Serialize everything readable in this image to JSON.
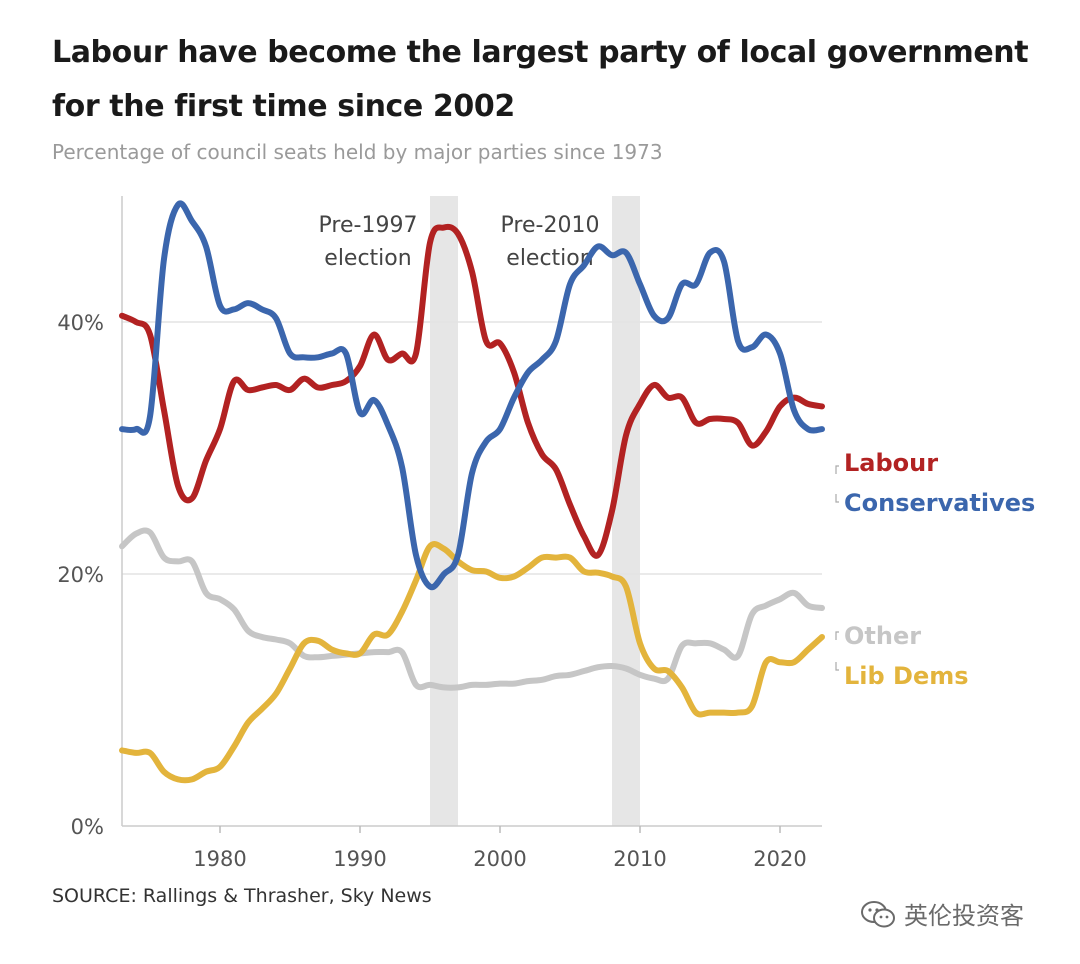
{
  "title": "Labour have become the largest party of local government for the first time since 2002",
  "subtitle": "Percentage of council seats held by major parties since 1973",
  "source": "SOURCE: Rallings & Thrasher, Sky News",
  "watermark": "英伦投资客",
  "chart_data": {
    "type": "line",
    "xlim": [
      1973,
      2023
    ],
    "ylim": [
      0,
      50
    ],
    "x_ticks": [
      1980,
      1990,
      2000,
      2010,
      2020
    ],
    "x_tick_labels": [
      "1980",
      "1990",
      "2000",
      "2010",
      "2020"
    ],
    "y_ticks": [
      0,
      20,
      40
    ],
    "y_tick_labels": [
      "0%",
      "20%",
      "40%"
    ],
    "grid": true,
    "bands": [
      {
        "label_line1": "Pre-1997",
        "label_line2": "election",
        "from": 1995,
        "to": 1997
      },
      {
        "label_line1": "Pre-2010",
        "label_line2": "election",
        "from": 2008,
        "to": 2010
      }
    ],
    "series": [
      {
        "name": "Labour",
        "color": "#b22222",
        "x": [
          1973,
          1974,
          1975,
          1976,
          1977,
          1978,
          1979,
          1980,
          1981,
          1982,
          1983,
          1984,
          1985,
          1986,
          1987,
          1988,
          1989,
          1990,
          1991,
          1992,
          1993,
          1994,
          1995,
          1996,
          1997,
          1998,
          1999,
          2000,
          2001,
          2002,
          2003,
          2004,
          2005,
          2006,
          2007,
          2008,
          2009,
          2010,
          2011,
          2012,
          2013,
          2014,
          2015,
          2016,
          2017,
          2018,
          2019,
          2020,
          2021,
          2022,
          2023
        ],
        "y": [
          40.5,
          40,
          39,
          33,
          27,
          26,
          29,
          31.5,
          35.3,
          34.6,
          34.8,
          35,
          34.6,
          35.5,
          34.8,
          35,
          35.3,
          36.5,
          39,
          37,
          37.5,
          37.5,
          46.3,
          47.5,
          47,
          44,
          38.5,
          38.3,
          36,
          32,
          29.5,
          28.3,
          25.5,
          23,
          21.5,
          25,
          31,
          33.5,
          35,
          34,
          34,
          32,
          32.3,
          32.3,
          32,
          30.2,
          31.3,
          33.3,
          34,
          33.5,
          33.3
        ]
      },
      {
        "name": "Conservatives",
        "color": "#3b66ad",
        "x": [
          1973,
          1974,
          1975,
          1976,
          1977,
          1978,
          1979,
          1980,
          1981,
          1982,
          1983,
          1984,
          1985,
          1986,
          1987,
          1988,
          1989,
          1990,
          1991,
          1992,
          1993,
          1994,
          1995,
          1996,
          1997,
          1998,
          1999,
          2000,
          2001,
          2002,
          2003,
          2004,
          2005,
          2006,
          2007,
          2008,
          2009,
          2010,
          2011,
          2012,
          2013,
          2014,
          2015,
          2016,
          2017,
          2018,
          2019,
          2020,
          2021,
          2022,
          2023
        ],
        "y": [
          31.5,
          31.5,
          32.5,
          45,
          49.3,
          48,
          46,
          41.3,
          41,
          41.5,
          41,
          40.3,
          37.5,
          37.2,
          37.2,
          37.5,
          37.5,
          32.8,
          33.8,
          31.8,
          28.5,
          21.5,
          19,
          20,
          21.5,
          28,
          30.5,
          31.5,
          34,
          36,
          37,
          38.5,
          43,
          44.5,
          46,
          45.3,
          45.5,
          43,
          40.5,
          40.3,
          43,
          43,
          45.5,
          44.8,
          38.5,
          38,
          39,
          37.5,
          33,
          31.5,
          31.5
        ]
      },
      {
        "name": "Other",
        "color": "#c6c6c6",
        "x": [
          1973,
          1974,
          1975,
          1976,
          1977,
          1978,
          1979,
          1980,
          1981,
          1982,
          1983,
          1984,
          1985,
          1986,
          1987,
          1988,
          1989,
          1990,
          1991,
          1992,
          1993,
          1994,
          1995,
          1996,
          1997,
          1998,
          1999,
          2000,
          2001,
          2002,
          2003,
          2004,
          2005,
          2006,
          2007,
          2008,
          2009,
          2010,
          2011,
          2012,
          2013,
          2014,
          2015,
          2016,
          2017,
          2018,
          2019,
          2020,
          2021,
          2022,
          2023
        ],
        "y": [
          22.2,
          23.2,
          23.3,
          21.3,
          21,
          21,
          18.5,
          18,
          17.2,
          15.5,
          15,
          14.8,
          14.5,
          13.5,
          13.4,
          13.5,
          13.6,
          13.7,
          13.8,
          13.8,
          13.8,
          11.2,
          11.2,
          11,
          11,
          11.2,
          11.2,
          11.3,
          11.3,
          11.5,
          11.6,
          11.9,
          12,
          12.3,
          12.6,
          12.7,
          12.5,
          12,
          11.7,
          11.7,
          14.3,
          14.5,
          14.5,
          14,
          13.5,
          16.8,
          17.5,
          18,
          18.5,
          17.5,
          17.3
        ]
      },
      {
        "name": "Lib Dems",
        "color": "#e3b43c",
        "x": [
          1973,
          1974,
          1975,
          1976,
          1977,
          1978,
          1979,
          1980,
          1981,
          1982,
          1983,
          1984,
          1985,
          1986,
          1987,
          1988,
          1989,
          1990,
          1991,
          1992,
          1993,
          1994,
          1995,
          1996,
          1997,
          1998,
          1999,
          2000,
          2001,
          2002,
          2003,
          2004,
          2005,
          2006,
          2007,
          2008,
          2009,
          2010,
          2011,
          2012,
          2013,
          2014,
          2015,
          2016,
          2017,
          2018,
          2019,
          2020,
          2021,
          2022,
          2023
        ],
        "y": [
          6,
          5.8,
          5.8,
          4.3,
          3.7,
          3.7,
          4.3,
          4.7,
          6.3,
          8.2,
          9.3,
          10.5,
          12.5,
          14.5,
          14.7,
          14,
          13.7,
          13.7,
          15.2,
          15.2,
          17,
          19.5,
          22.2,
          22,
          21,
          20.3,
          20.2,
          19.7,
          19.8,
          20.5,
          21.3,
          21.3,
          21.3,
          20.2,
          20.1,
          19.8,
          19,
          14.5,
          12.5,
          12.3,
          11,
          9,
          9,
          9,
          9,
          9.5,
          13,
          13,
          13,
          14,
          15
        ]
      }
    ]
  }
}
